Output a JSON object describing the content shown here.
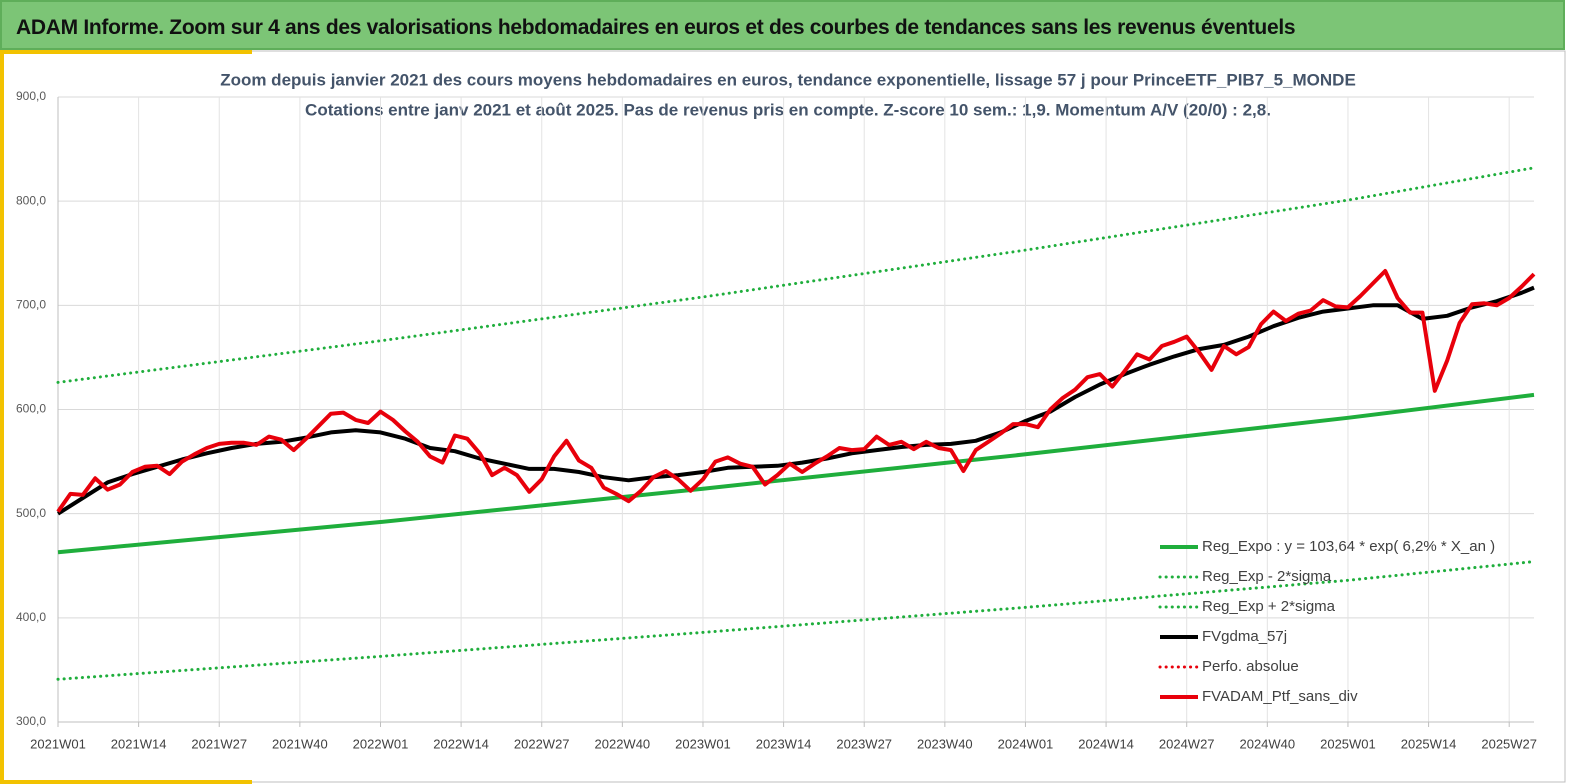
{
  "header": {
    "title": "ADAM Informe. Zoom sur 4 ans des valorisations hebdomadaires en euros et des courbes de tendances sans les revenus éventuels"
  },
  "chart_data": {
    "type": "line",
    "title": "Zoom depuis janvier 2021 des cours moyens hebdomadaires  en euros, tendance exponentielle, lissage 57 j pour PrinceETF_PIB7_5_MONDE",
    "subtitle": "Cotations entre janv 2021 et août 2025. Pas de revenus pris en compte. Z-score 10 sem.: 1,9. Momentum A/V (20/0) : 2,8.",
    "xlim": [
      0,
      238
    ],
    "xticks": [
      {
        "value": 0,
        "label": "2021W01"
      },
      {
        "value": 13,
        "label": "2021W14"
      },
      {
        "value": 26,
        "label": "2021W27"
      },
      {
        "value": 39,
        "label": "2021W40"
      },
      {
        "value": 52,
        "label": "2022W01"
      },
      {
        "value": 65,
        "label": "2022W14"
      },
      {
        "value": 78,
        "label": "2022W27"
      },
      {
        "value": 91,
        "label": "2022W40"
      },
      {
        "value": 104,
        "label": "2023W01"
      },
      {
        "value": 117,
        "label": "2023W14"
      },
      {
        "value": 130,
        "label": "2023W27"
      },
      {
        "value": 143,
        "label": "2023W40"
      },
      {
        "value": 156,
        "label": "2024W01"
      },
      {
        "value": 169,
        "label": "2024W14"
      },
      {
        "value": 182,
        "label": "2024W27"
      },
      {
        "value": 195,
        "label": "2024W40"
      },
      {
        "value": 208,
        "label": "2025W01"
      },
      {
        "value": 221,
        "label": "2025W14"
      },
      {
        "value": 234,
        "label": "2025W27"
      }
    ],
    "ylim": [
      300,
      900
    ],
    "yticks": [
      {
        "value": 300,
        "label": "300,0"
      },
      {
        "value": 400,
        "label": "400,0"
      },
      {
        "value": 500,
        "label": "500,0"
      },
      {
        "value": 600,
        "label": "600,0"
      },
      {
        "value": 700,
        "label": "700,0"
      },
      {
        "value": 800,
        "label": "800,0"
      },
      {
        "value": 900,
        "label": "900,0"
      }
    ],
    "grid": true,
    "legend": "lower-right",
    "series": [
      {
        "name": "Reg_Expo : y = 103,64 * exp( 6,2% *  X_an )",
        "color": "#1fae3c",
        "dash": false,
        "x": [
          0,
          52,
          104,
          156,
          208,
          238
        ],
        "values": [
          463,
          492,
          524,
          557,
          592,
          614
        ]
      },
      {
        "name": "Reg_Exp - 2*sigma",
        "color": "#1fae3c",
        "dash": true,
        "x": [
          0,
          52,
          104,
          156,
          208,
          238
        ],
        "values": [
          341,
          363,
          386,
          410,
          436,
          454
        ]
      },
      {
        "name": "Reg_Exp + 2*sigma",
        "color": "#1fae3c",
        "dash": true,
        "x": [
          0,
          52,
          104,
          156,
          208,
          238
        ],
        "values": [
          626,
          666,
          708,
          753,
          801,
          832
        ]
      },
      {
        "name": "FVgdma_57j",
        "color": "#000000",
        "dash": false,
        "x": [
          0,
          4,
          8,
          12,
          16,
          20,
          24,
          28,
          32,
          36,
          40,
          44,
          48,
          52,
          56,
          60,
          64,
          68,
          72,
          76,
          80,
          84,
          88,
          92,
          96,
          100,
          104,
          108,
          112,
          116,
          120,
          124,
          128,
          132,
          136,
          140,
          144,
          148,
          152,
          156,
          160,
          164,
          168,
          172,
          176,
          180,
          184,
          188,
          192,
          196,
          200,
          204,
          208,
          212,
          216,
          220,
          224,
          228,
          232,
          236,
          238
        ],
        "values": [
          500,
          515,
          530,
          538,
          545,
          552,
          558,
          563,
          567,
          569,
          573,
          578,
          580,
          578,
          572,
          563,
          560,
          553,
          548,
          543,
          543,
          540,
          535,
          532,
          535,
          537,
          540,
          544,
          545,
          546,
          549,
          553,
          558,
          561,
          564,
          566,
          567,
          570,
          578,
          589,
          598,
          612,
          624,
          634,
          643,
          651,
          658,
          662,
          670,
          680,
          688,
          694,
          697,
          700,
          700,
          687,
          690,
          698,
          704,
          712,
          717
        ]
      },
      {
        "name": "Perfo. absolue",
        "color": "#e8000b",
        "dash": true
      },
      {
        "name": "FVADAM_Ptf_sans_div",
        "color": "#e8000b",
        "dash": false,
        "x": [
          0,
          2,
          4,
          6,
          8,
          10,
          12,
          14,
          16,
          18,
          20,
          22,
          24,
          26,
          28,
          30,
          32,
          34,
          36,
          38,
          40,
          42,
          44,
          46,
          48,
          50,
          52,
          54,
          56,
          58,
          60,
          62,
          64,
          66,
          68,
          70,
          72,
          74,
          76,
          78,
          80,
          82,
          84,
          86,
          88,
          90,
          92,
          94,
          96,
          98,
          100,
          102,
          104,
          106,
          108,
          110,
          112,
          114,
          116,
          118,
          120,
          122,
          124,
          126,
          128,
          130,
          132,
          134,
          136,
          138,
          140,
          142,
          144,
          146,
          148,
          150,
          152,
          154,
          156,
          158,
          160,
          162,
          164,
          166,
          168,
          170,
          172,
          174,
          176,
          178,
          180,
          182,
          184,
          186,
          188,
          190,
          192,
          194,
          196,
          198,
          200,
          202,
          204,
          206,
          208,
          210,
          212,
          214,
          216,
          218,
          220,
          222,
          224,
          226,
          228,
          230,
          232,
          234,
          236,
          238
        ],
        "values": [
          502,
          519,
          518,
          534,
          523,
          528,
          540,
          545,
          546,
          538,
          550,
          557,
          563,
          567,
          568,
          568,
          566,
          574,
          571,
          561,
          572,
          584,
          596,
          597,
          590,
          587,
          598,
          590,
          579,
          569,
          555,
          549,
          575,
          572,
          558,
          537,
          544,
          537,
          521,
          533,
          555,
          570,
          551,
          544,
          525,
          519,
          512,
          522,
          535,
          541,
          533,
          522,
          533,
          550,
          554,
          548,
          545,
          528,
          537,
          548,
          540,
          548,
          555,
          563,
          561,
          562,
          574,
          566,
          569,
          562,
          569,
          563,
          561,
          541,
          561,
          569,
          577,
          586,
          586,
          583,
          600,
          611,
          619,
          631,
          634,
          622,
          637,
          653,
          648,
          661,
          665,
          670,
          655,
          638,
          661,
          653,
          660,
          682,
          694,
          685,
          692,
          695,
          705,
          699,
          698,
          709,
          721,
          733,
          707,
          693,
          693,
          618,
          647,
          683,
          701,
          702,
          700,
          707,
          718,
          730
        ]
      }
    ]
  }
}
